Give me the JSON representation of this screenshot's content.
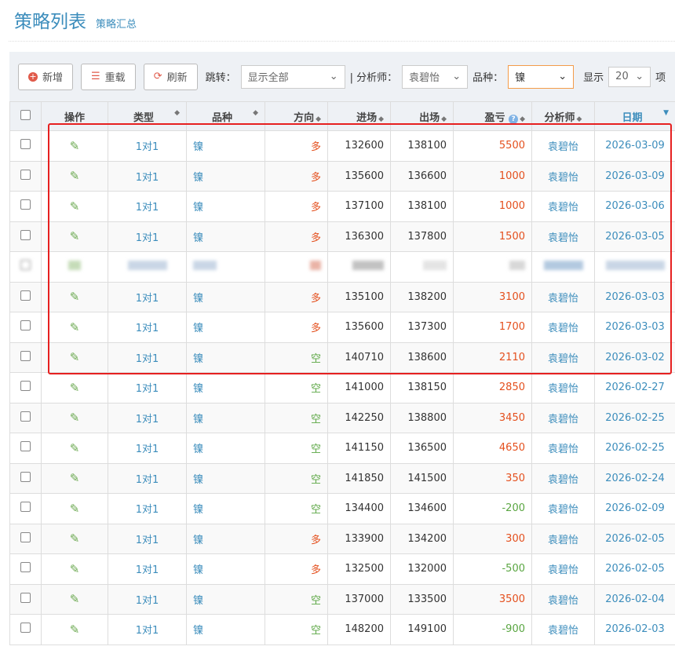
{
  "header": {
    "title": "策略列表",
    "subtitle": "策略汇总"
  },
  "toolbar": {
    "add": "新增",
    "reload": "重载",
    "refresh": "刷新",
    "jump_label": "跳转：",
    "jump_value": "显示全部",
    "analyst_label": "| 分析师：",
    "analyst_value": "袁碧怡",
    "variety_label": "品种：",
    "variety_value": "镍",
    "show_label": "显示",
    "show_value": "20",
    "items_label": "项"
  },
  "columns": [
    "操作",
    "类型",
    "品种",
    "方向",
    "进场",
    "出场",
    "盈亏",
    "分析师",
    "日期"
  ],
  "rows": [
    {
      "type": "1对1",
      "variety": "镍",
      "dir": "多",
      "in": "132600",
      "out": "138100",
      "pl": "5500",
      "analyst": "袁碧怡",
      "date": "2026-03-09"
    },
    {
      "type": "1对1",
      "variety": "镍",
      "dir": "多",
      "in": "135600",
      "out": "136600",
      "pl": "1000",
      "analyst": "袁碧怡",
      "date": "2026-03-09"
    },
    {
      "type": "1对1",
      "variety": "镍",
      "dir": "多",
      "in": "137100",
      "out": "138100",
      "pl": "1000",
      "analyst": "袁碧怡",
      "date": "2026-03-06"
    },
    {
      "type": "1对1",
      "variety": "镍",
      "dir": "多",
      "in": "136300",
      "out": "137800",
      "pl": "1500",
      "analyst": "袁碧怡",
      "date": "2026-03-05"
    },
    {
      "blurred": true
    },
    {
      "type": "1对1",
      "variety": "镍",
      "dir": "多",
      "in": "135100",
      "out": "138200",
      "pl": "3100",
      "analyst": "袁碧怡",
      "date": "2026-03-03"
    },
    {
      "type": "1对1",
      "variety": "镍",
      "dir": "多",
      "in": "135600",
      "out": "137300",
      "pl": "1700",
      "analyst": "袁碧怡",
      "date": "2026-03-03"
    },
    {
      "type": "1对1",
      "variety": "镍",
      "dir": "空",
      "in": "140710",
      "out": "138600",
      "pl": "2110",
      "analyst": "袁碧怡",
      "date": "2026-03-02"
    },
    {
      "type": "1对1",
      "variety": "镍",
      "dir": "空",
      "in": "141000",
      "out": "138150",
      "pl": "2850",
      "analyst": "袁碧怡",
      "date": "2026-02-27"
    },
    {
      "type": "1对1",
      "variety": "镍",
      "dir": "空",
      "in": "142250",
      "out": "138800",
      "pl": "3450",
      "analyst": "袁碧怡",
      "date": "2026-02-25"
    },
    {
      "type": "1对1",
      "variety": "镍",
      "dir": "空",
      "in": "141150",
      "out": "136500",
      "pl": "4650",
      "analyst": "袁碧怡",
      "date": "2026-02-25"
    },
    {
      "type": "1对1",
      "variety": "镍",
      "dir": "空",
      "in": "141850",
      "out": "141500",
      "pl": "350",
      "analyst": "袁碧怡",
      "date": "2026-02-24"
    },
    {
      "type": "1对1",
      "variety": "镍",
      "dir": "空",
      "in": "134400",
      "out": "134600",
      "pl": "-200",
      "analyst": "袁碧怡",
      "date": "2026-02-09"
    },
    {
      "type": "1对1",
      "variety": "镍",
      "dir": "多",
      "in": "133900",
      "out": "134200",
      "pl": "300",
      "analyst": "袁碧怡",
      "date": "2026-02-05"
    },
    {
      "type": "1对1",
      "variety": "镍",
      "dir": "多",
      "in": "132500",
      "out": "132000",
      "pl": "-500",
      "analyst": "袁碧怡",
      "date": "2026-02-05"
    },
    {
      "type": "1对1",
      "variety": "镍",
      "dir": "空",
      "in": "137000",
      "out": "133500",
      "pl": "3500",
      "analyst": "袁碧怡",
      "date": "2026-02-04"
    },
    {
      "type": "1对1",
      "variety": "镍",
      "dir": "空",
      "in": "148200",
      "out": "149100",
      "pl": "-900",
      "analyst": "袁碧怡",
      "date": "2026-02-03"
    }
  ],
  "colors": {
    "accent": "#3c8dbc",
    "profit": "#e4501e",
    "loss": "#5aa642",
    "highlight": "#e62020"
  }
}
